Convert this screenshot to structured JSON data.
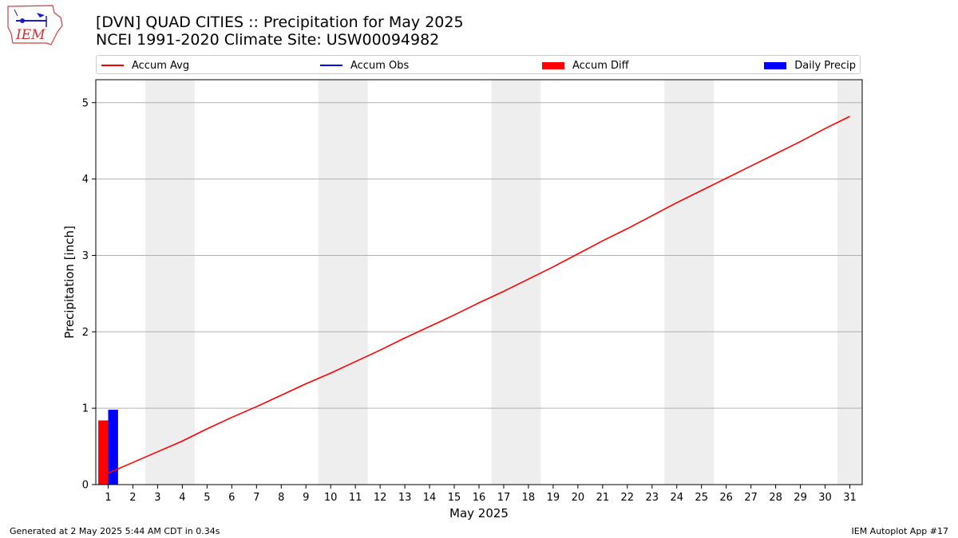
{
  "header": {
    "logo_text": "IEM",
    "title_line1": "[DVN] QUAD CITIES :: Precipitation for May 2025",
    "title_line2": "NCEI 1991-2020 Climate Site: USW00094982"
  },
  "legend": [
    {
      "label": "Accum Avg",
      "color": "#ff0000",
      "kind": "line"
    },
    {
      "label": "Accum Obs",
      "color": "#0000ff",
      "kind": "line"
    },
    {
      "label": "Accum Diff",
      "color": "#ff0000",
      "kind": "patch"
    },
    {
      "label": "Daily Precip",
      "color": "#0000ff",
      "kind": "patch"
    }
  ],
  "footer": {
    "left": "Generated at 2 May 2025 5:44 AM CDT in 0.34s",
    "right": "IEM Autoplot App #17"
  },
  "chart_data": {
    "type": "line",
    "xlabel": "May 2025",
    "ylabel": "Precipitation [inch]",
    "xlim": [
      0.5,
      31.5
    ],
    "ylim": [
      0,
      5.3
    ],
    "yticks": [
      0,
      1,
      2,
      3,
      4,
      5
    ],
    "xticks": [
      1,
      2,
      3,
      4,
      5,
      6,
      7,
      8,
      9,
      10,
      11,
      12,
      13,
      14,
      15,
      16,
      17,
      18,
      19,
      20,
      21,
      22,
      23,
      24,
      25,
      26,
      27,
      28,
      29,
      30,
      31
    ],
    "grid": "y",
    "legend_position": "top",
    "weekend_shading": [
      [
        2.5,
        4.5
      ],
      [
        9.5,
        11.5
      ],
      [
        16.5,
        18.5
      ],
      [
        23.5,
        25.5
      ],
      [
        30.5,
        31.5
      ]
    ],
    "shading_color": "#eeeeee",
    "series": [
      {
        "name": "Accum Avg",
        "type": "line",
        "color": "#ff0000",
        "x": [
          1,
          2,
          3,
          4,
          5,
          6,
          7,
          8,
          9,
          10,
          11,
          12,
          13,
          14,
          15,
          16,
          17,
          18,
          19,
          20,
          21,
          22,
          23,
          24,
          25,
          26,
          27,
          28,
          29,
          30,
          31
        ],
        "values": [
          0.15,
          0.29,
          0.43,
          0.57,
          0.73,
          0.88,
          1.02,
          1.17,
          1.32,
          1.46,
          1.61,
          1.76,
          1.92,
          2.07,
          2.22,
          2.38,
          2.53,
          2.69,
          2.85,
          3.02,
          3.19,
          3.35,
          3.52,
          3.69,
          3.85,
          4.01,
          4.17,
          4.33,
          4.49,
          4.66,
          4.82
        ]
      },
      {
        "name": "Accum Diff",
        "type": "bar",
        "color": "#ff0000",
        "x": [
          1
        ],
        "values": [
          0.84
        ]
      },
      {
        "name": "Daily Precip",
        "type": "bar",
        "color": "#0000ff",
        "x": [
          1
        ],
        "values": [
          0.98
        ]
      }
    ]
  }
}
